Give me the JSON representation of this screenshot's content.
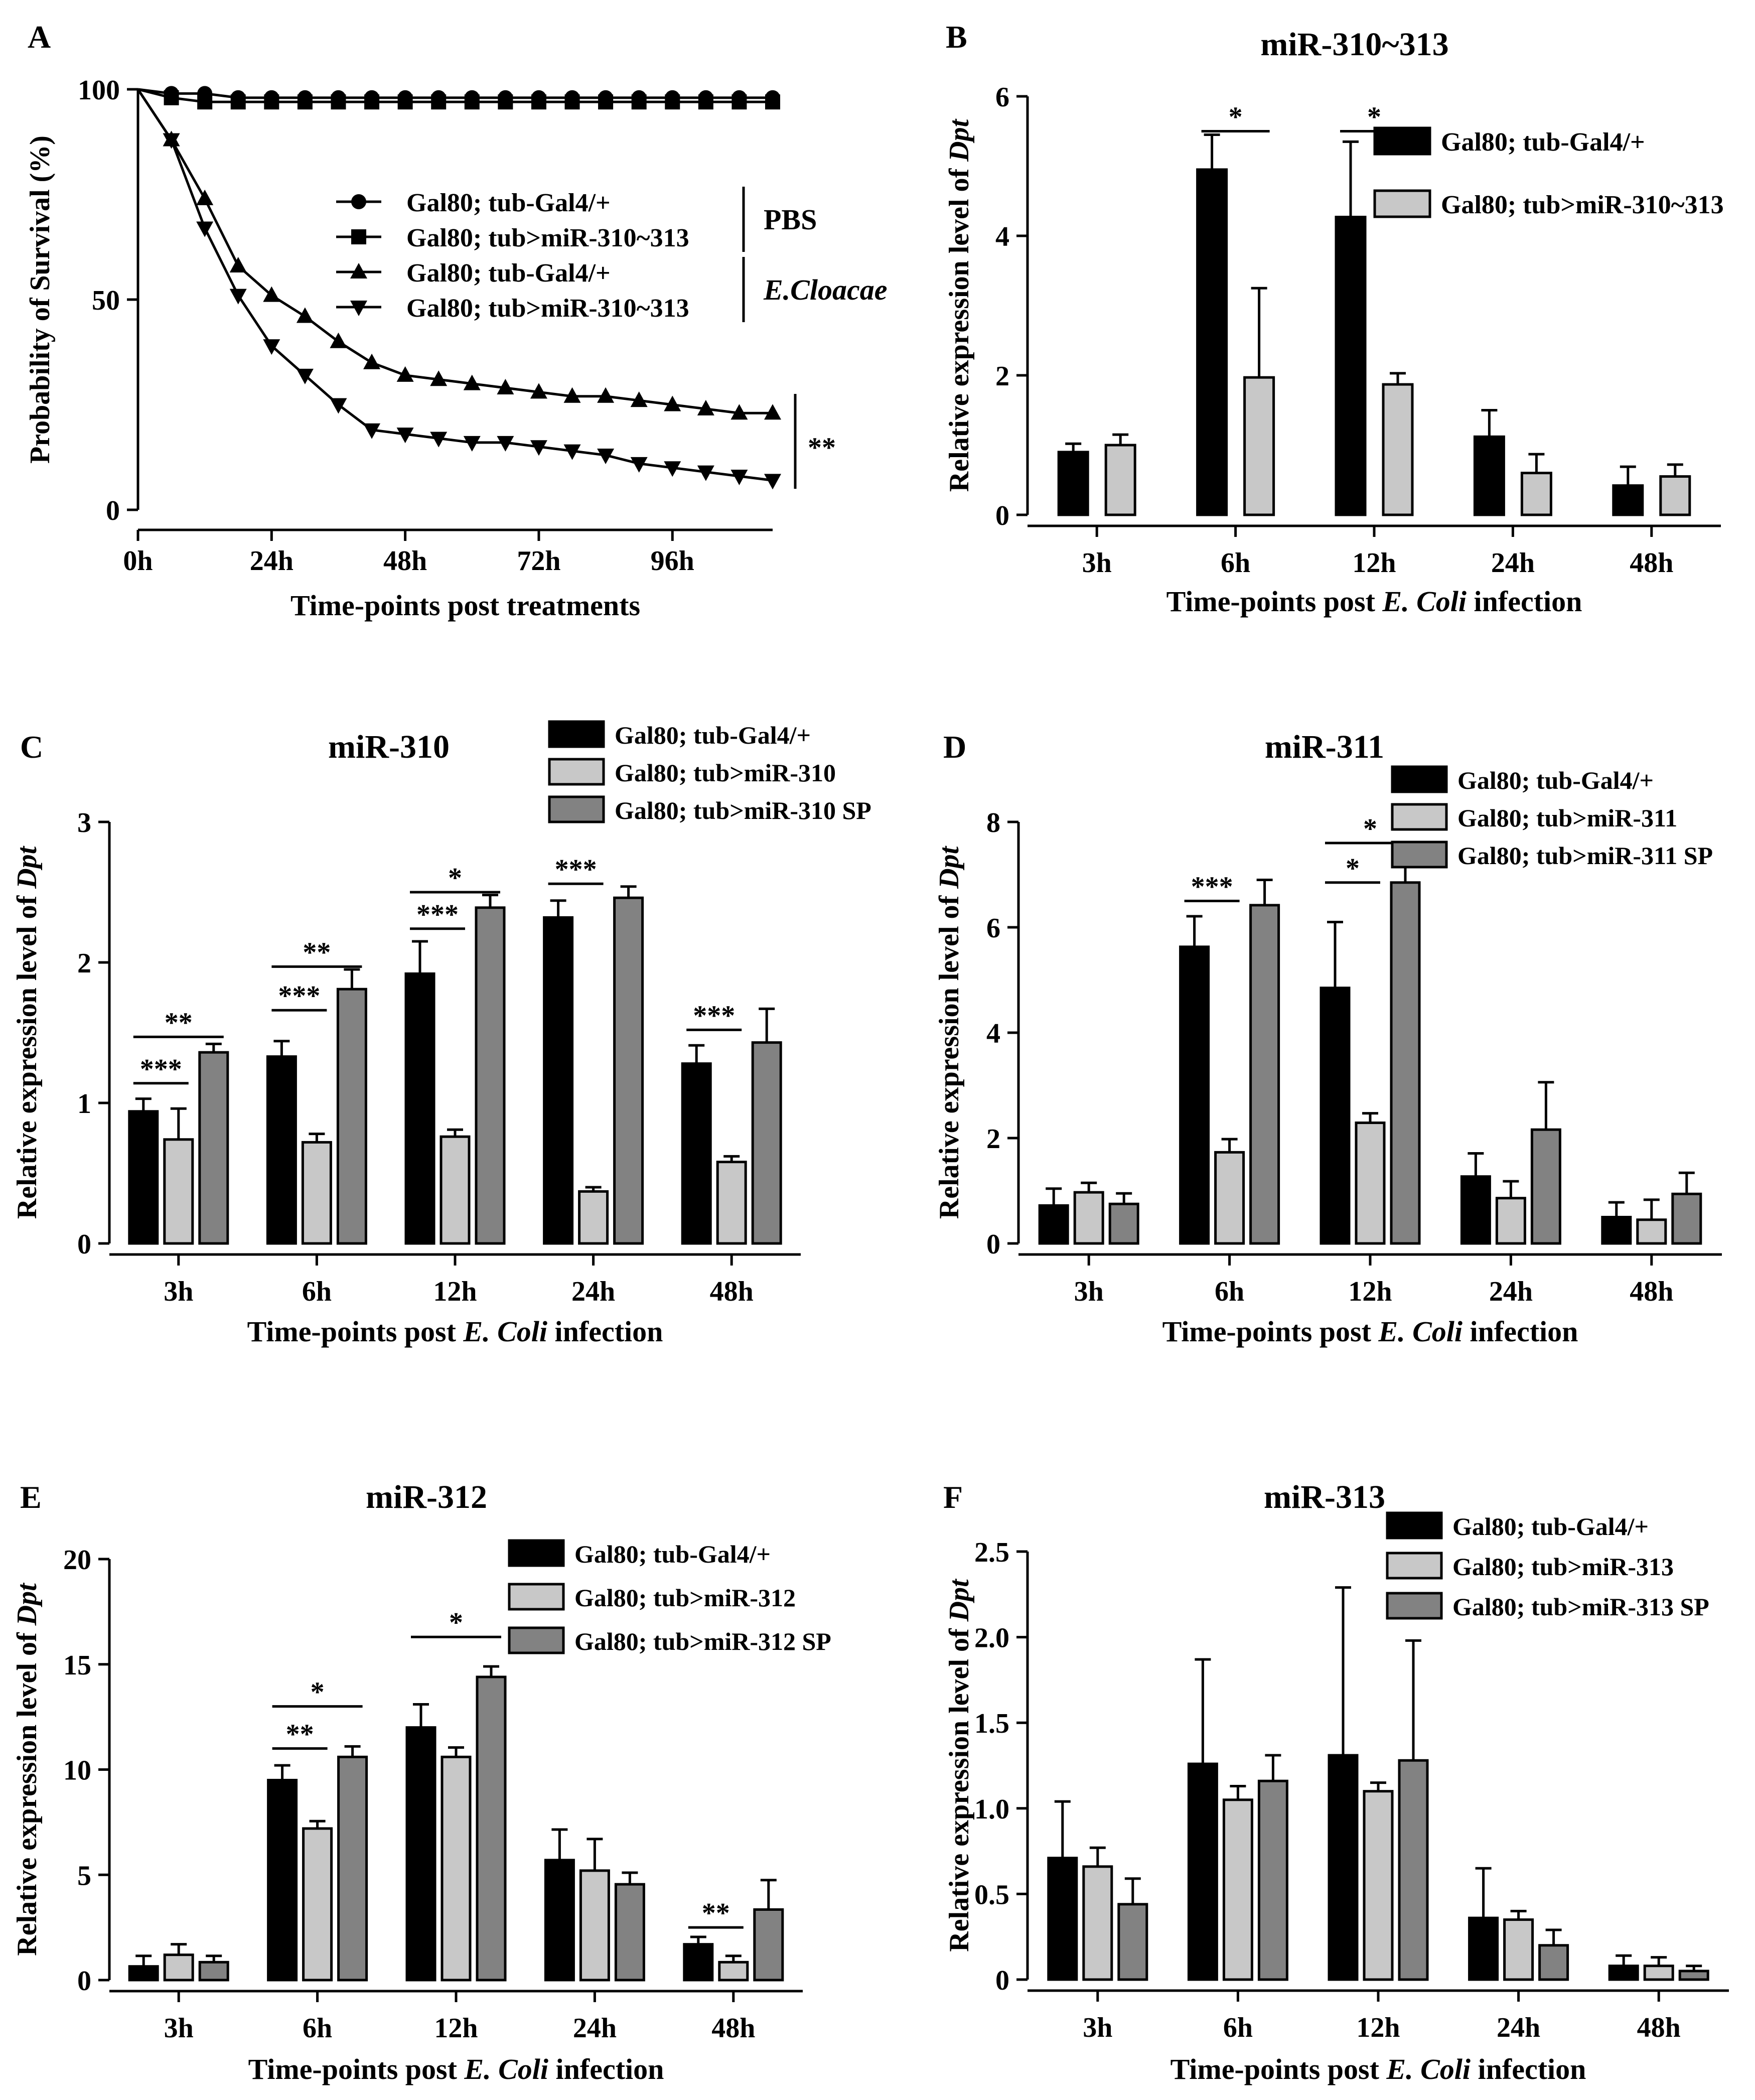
{
  "figure": {
    "x_title_prefix": "Time-points post ",
    "x_title_pathogen": "E. Coli",
    "x_title_suffix": " infection",
    "y_title_prefix": "Relative expression level of ",
    "y_title_gene": "Dpt"
  },
  "colors": {
    "black": "#000000",
    "light_gray": "#c8c8c8",
    "dark_gray": "#828282",
    "white": "#ffffff"
  },
  "chart_data": [
    {
      "panel": "A",
      "type": "line",
      "title": "",
      "xlabel": "Time-points post treatments",
      "ylabel": "Probability of Survival (%)",
      "xlim": [
        0,
        114
      ],
      "ylim": [
        0,
        100
      ],
      "x_ticks": [
        0,
        24,
        48,
        72,
        96
      ],
      "x_tick_labels": [
        "0h",
        "24h",
        "48h",
        "72h",
        "96h"
      ],
      "y_ticks": [
        0,
        50,
        100
      ],
      "y_tick_labels": [
        "0",
        "50",
        "100"
      ],
      "groups": [
        {
          "label": "PBS",
          "italic": false,
          "series_index": [
            0,
            1
          ]
        },
        {
          "label": "E.Cloacae",
          "italic": true,
          "series_index": [
            2,
            3
          ]
        }
      ],
      "significance": [
        {
          "label": "**",
          "series_index": [
            2,
            3
          ]
        }
      ],
      "series": [
        {
          "name": "Gal80; tub-Gal4/+",
          "marker": "circle",
          "x": [
            0,
            6,
            12,
            18,
            24,
            30,
            36,
            42,
            48,
            54,
            60,
            66,
            72,
            78,
            84,
            90,
            96,
            102,
            108,
            114
          ],
          "y": [
            100,
            99,
            99,
            98,
            98,
            98,
            98,
            98,
            98,
            98,
            98,
            98,
            98,
            98,
            98,
            98,
            98,
            98,
            98,
            98
          ]
        },
        {
          "name": "Gal80; tub>miR-310~313",
          "marker": "square",
          "x": [
            0,
            6,
            12,
            18,
            24,
            30,
            36,
            42,
            48,
            54,
            60,
            66,
            72,
            78,
            84,
            90,
            96,
            102,
            108,
            114
          ],
          "y": [
            100,
            98,
            97,
            97,
            97,
            97,
            97,
            97,
            97,
            97,
            97,
            97,
            97,
            97,
            97,
            97,
            97,
            97,
            97,
            97
          ]
        },
        {
          "name": "Gal80; tub-Gal4/+",
          "marker": "triangle-up",
          "x": [
            0,
            6,
            12,
            18,
            24,
            30,
            36,
            42,
            48,
            54,
            60,
            66,
            72,
            78,
            84,
            90,
            96,
            102,
            108,
            114
          ],
          "y": [
            100,
            88,
            74,
            58,
            51,
            46,
            40,
            35,
            32,
            31,
            30,
            29,
            28,
            27,
            27,
            26,
            25,
            24,
            23,
            23
          ]
        },
        {
          "name": "Gal80; tub>miR-310~313",
          "marker": "triangle-down",
          "x": [
            0,
            6,
            12,
            18,
            24,
            30,
            36,
            42,
            48,
            54,
            60,
            66,
            72,
            78,
            84,
            90,
            96,
            102,
            108,
            114
          ],
          "y": [
            100,
            88,
            67,
            51,
            39,
            32,
            25,
            19,
            18,
            17,
            16,
            16,
            15,
            14,
            13,
            11,
            10,
            9,
            8,
            7
          ]
        }
      ]
    },
    {
      "panel": "B",
      "type": "bar",
      "title": "miR-310~313",
      "categories": [
        "3h",
        "6h",
        "12h",
        "24h",
        "48h"
      ],
      "ylim": [
        0,
        6
      ],
      "y_ticks": [
        0,
        2,
        4,
        6
      ],
      "y_tick_labels": [
        "0",
        "2",
        "4",
        "6"
      ],
      "legend_position": "top-right",
      "series": [
        {
          "name": "Gal80; tub-Gal4/+",
          "color_key": "black",
          "values": [
            0.9,
            4.95,
            4.27,
            1.12,
            0.42
          ],
          "errors": [
            0.12,
            0.5,
            1.08,
            0.38,
            0.27
          ]
        },
        {
          "name": "Gal80; tub>miR-310~313",
          "color_key": "light_gray",
          "values": [
            1.0,
            1.97,
            1.87,
            0.6,
            0.55
          ],
          "errors": [
            0.15,
            1.28,
            0.16,
            0.27,
            0.17
          ]
        }
      ],
      "significance": [
        {
          "category": 1,
          "from": 0,
          "to": 1,
          "label": "*",
          "y": 5.5
        },
        {
          "category": 2,
          "from": 0,
          "to": 1,
          "label": "*",
          "y": 5.5
        }
      ]
    },
    {
      "panel": "C",
      "type": "bar",
      "title": "miR-310",
      "categories": [
        "3h",
        "6h",
        "12h",
        "24h",
        "48h"
      ],
      "ylim": [
        0,
        3
      ],
      "y_ticks": [
        0,
        1,
        2,
        3
      ],
      "y_tick_labels": [
        "0",
        "1",
        "2",
        "3"
      ],
      "legend_position": "top-right",
      "series": [
        {
          "name": "Gal80; tub-Gal4/+",
          "color_key": "black",
          "values": [
            0.94,
            1.33,
            1.92,
            2.32,
            1.28
          ],
          "errors": [
            0.09,
            0.11,
            0.23,
            0.12,
            0.13
          ]
        },
        {
          "name": "Gal80; tub>miR-310",
          "color_key": "light_gray",
          "values": [
            0.74,
            0.72,
            0.76,
            0.37,
            0.58
          ],
          "errors": [
            0.22,
            0.06,
            0.05,
            0.03,
            0.04
          ]
        },
        {
          "name": "Gal80; tub>miR-310 SP",
          "color_key": "dark_gray",
          "values": [
            1.36,
            1.81,
            2.39,
            2.46,
            1.43
          ],
          "errors": [
            0.06,
            0.14,
            0.09,
            0.08,
            0.24
          ]
        }
      ],
      "significance": [
        {
          "category": 0,
          "from": 0,
          "to": 1,
          "label": "***",
          "y": 1.14
        },
        {
          "category": 0,
          "from": 0,
          "to": 2,
          "label": "**",
          "y": 1.47
        },
        {
          "category": 1,
          "from": 0,
          "to": 1,
          "label": "***",
          "y": 1.66
        },
        {
          "category": 1,
          "from": 0,
          "to": 2,
          "label": "**",
          "y": 1.97
        },
        {
          "category": 2,
          "from": 0,
          "to": 1,
          "label": "***",
          "y": 2.24
        },
        {
          "category": 2,
          "from": 0,
          "to": 2,
          "label": "*",
          "y": 2.5
        },
        {
          "category": 3,
          "from": 0,
          "to": 1,
          "label": "***",
          "y": 2.56
        },
        {
          "category": 4,
          "from": 0,
          "to": 1,
          "label": "***",
          "y": 1.52
        }
      ]
    },
    {
      "panel": "D",
      "type": "bar",
      "title": "miR-311",
      "categories": [
        "3h",
        "6h",
        "12h",
        "24h",
        "48h"
      ],
      "ylim": [
        0,
        8
      ],
      "y_ticks": [
        0,
        2,
        4,
        6,
        8
      ],
      "y_tick_labels": [
        "0",
        "2",
        "4",
        "6",
        "8"
      ],
      "legend_position": "top-right",
      "series": [
        {
          "name": "Gal80; tub-Gal4/+",
          "color_key": "black",
          "values": [
            0.72,
            5.63,
            4.85,
            1.27,
            0.5
          ],
          "errors": [
            0.32,
            0.58,
            1.25,
            0.44,
            0.28
          ]
        },
        {
          "name": "Gal80; tub>miR-311",
          "color_key": "light_gray",
          "values": [
            0.97,
            1.73,
            2.29,
            0.86,
            0.45
          ],
          "errors": [
            0.18,
            0.25,
            0.18,
            0.32,
            0.38
          ]
        },
        {
          "name": "Gal80; tub>miR-311 SP",
          "color_key": "dark_gray",
          "values": [
            0.75,
            6.42,
            6.85,
            2.16,
            0.94
          ],
          "errors": [
            0.2,
            0.48,
            0.35,
            0.9,
            0.4
          ]
        }
      ],
      "significance": [
        {
          "category": 1,
          "from": 0,
          "to": 1,
          "label": "***",
          "y": 6.5
        },
        {
          "category": 2,
          "from": 0,
          "to": 1,
          "label": "*",
          "y": 6.85
        },
        {
          "category": 2,
          "from": 0,
          "to": 2,
          "label": "*",
          "y": 7.6
        }
      ]
    },
    {
      "panel": "E",
      "type": "bar",
      "title": "miR-312",
      "categories": [
        "3h",
        "6h",
        "12h",
        "24h",
        "48h"
      ],
      "ylim": [
        0,
        20
      ],
      "y_ticks": [
        0,
        5,
        10,
        15,
        20
      ],
      "y_tick_labels": [
        "0",
        "5",
        "10",
        "15",
        "20"
      ],
      "legend_position": "top-right",
      "series": [
        {
          "name": "Gal80; tub-Gal4/+",
          "color_key": "black",
          "values": [
            0.65,
            9.5,
            12.0,
            5.7,
            1.7
          ],
          "errors": [
            0.5,
            0.7,
            1.1,
            1.45,
            0.35
          ]
        },
        {
          "name": "Gal80; tub>miR-312",
          "color_key": "light_gray",
          "values": [
            1.2,
            7.2,
            10.6,
            5.2,
            0.85
          ],
          "errors": [
            0.5,
            0.35,
            0.45,
            1.5,
            0.3
          ]
        },
        {
          "name": "Gal80; tub>miR-312 SP",
          "color_key": "dark_gray",
          "values": [
            0.85,
            10.6,
            14.4,
            4.55,
            3.35
          ],
          "errors": [
            0.3,
            0.5,
            0.5,
            0.55,
            1.4
          ]
        }
      ],
      "significance": [
        {
          "category": 1,
          "from": 0,
          "to": 1,
          "label": "**",
          "y": 11.0
        },
        {
          "category": 1,
          "from": 0,
          "to": 2,
          "label": "*",
          "y": 13.0
        },
        {
          "category": 2,
          "from": 0,
          "to": 2,
          "label": "*",
          "y": 16.3
        },
        {
          "category": 4,
          "from": 0,
          "to": 1,
          "label": "**",
          "y": 2.5
        }
      ]
    },
    {
      "panel": "F",
      "type": "bar",
      "title": "miR-313",
      "categories": [
        "3h",
        "6h",
        "12h",
        "24h",
        "48h"
      ],
      "ylim": [
        0,
        2.5
      ],
      "y_ticks": [
        0,
        0.5,
        1.0,
        1.5,
        2.0,
        2.5
      ],
      "y_tick_labels": [
        "0",
        "0.5",
        "1.0",
        "1.5",
        "2.0",
        "2.5"
      ],
      "legend_position": "top-right",
      "series": [
        {
          "name": "Gal80; tub-Gal4/+",
          "color_key": "black",
          "values": [
            0.71,
            1.26,
            1.31,
            0.36,
            0.08
          ],
          "errors": [
            0.33,
            0.61,
            0.98,
            0.29,
            0.06
          ]
        },
        {
          "name": "Gal80; tub>miR-313",
          "color_key": "light_gray",
          "values": [
            0.66,
            1.05,
            1.1,
            0.35,
            0.08
          ],
          "errors": [
            0.11,
            0.08,
            0.05,
            0.05,
            0.05
          ]
        },
        {
          "name": "Gal80; tub>miR-313 SP",
          "color_key": "dark_gray",
          "values": [
            0.44,
            1.16,
            1.28,
            0.2,
            0.05
          ],
          "errors": [
            0.15,
            0.15,
            0.7,
            0.09,
            0.03
          ]
        }
      ],
      "significance": []
    }
  ]
}
